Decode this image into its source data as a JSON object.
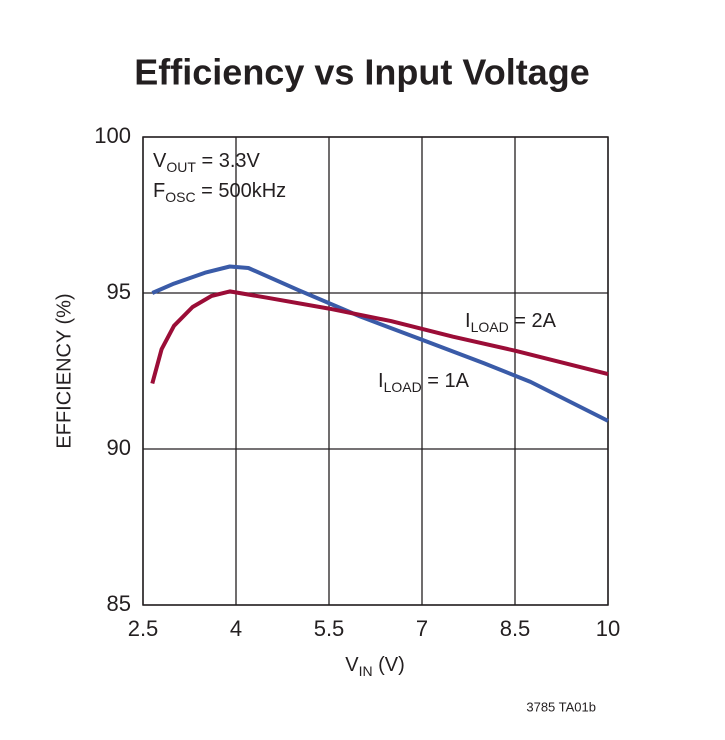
{
  "chart_data": {
    "type": "line",
    "title": "Efficiency vs Input Voltage",
    "y_label": "EFFICIENCY (%)",
    "x_label": {
      "main": "V",
      "sub": "IN",
      "rest": " (V)"
    },
    "annotations": [
      {
        "main": "V",
        "sub": "OUT",
        "rest": " = 3.3V"
      },
      {
        "main": "F",
        "sub": "OSC",
        "rest": " = 500kHz"
      },
      {
        "main": "I",
        "sub": "LOAD",
        "rest": " = 2A"
      },
      {
        "main": "I",
        "sub": "LOAD",
        "rest": " = 1A"
      }
    ],
    "footnote": "3785 TA01b",
    "xlim": [
      2.5,
      10
    ],
    "xticks": [
      2.5,
      4,
      5.5,
      7,
      8.5,
      10
    ],
    "ylim": [
      85,
      100
    ],
    "yticks": [
      85,
      90,
      95,
      100
    ],
    "grid": true,
    "series": [
      {
        "color": "#3a5ba8",
        "x": [
          2.65,
          3.0,
          3.5,
          3.9,
          4.2,
          5.0,
          6.0,
          7.0,
          8.0,
          8.75,
          10
        ],
        "values": [
          95.0,
          95.3,
          95.65,
          95.85,
          95.8,
          95.1,
          94.25,
          93.5,
          92.75,
          92.15,
          90.9
        ]
      },
      {
        "color": "#9b0d37",
        "x": [
          2.65,
          2.8,
          3.0,
          3.3,
          3.6,
          3.9,
          4.5,
          5.5,
          6.5,
          7.5,
          8.5,
          10
        ],
        "values": [
          92.1,
          93.2,
          93.95,
          94.55,
          94.9,
          95.05,
          94.85,
          94.5,
          94.1,
          93.6,
          93.15,
          92.4
        ]
      }
    ]
  }
}
